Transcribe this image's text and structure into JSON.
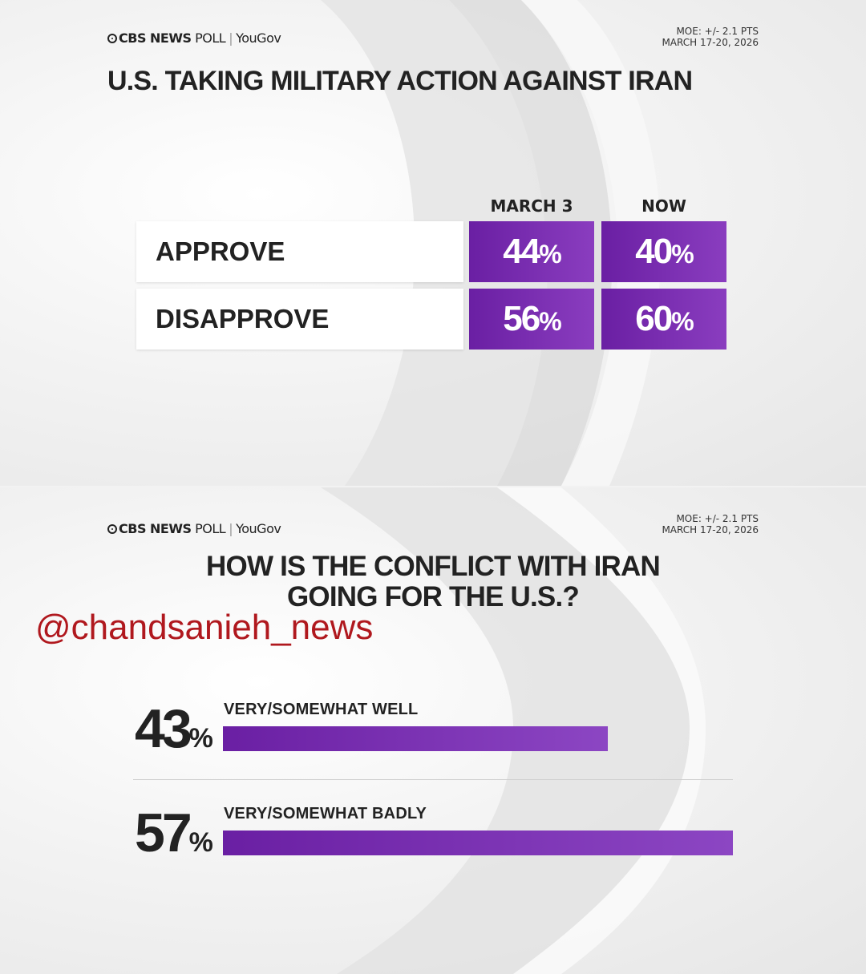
{
  "colors": {
    "accent": "#7a2fb3",
    "watermark": "#b0181e"
  },
  "top": {
    "brand": {
      "cbs": "CBS NEWS",
      "poll": "POLL",
      "partner": "YouGov"
    },
    "moe_line1": "MOE: +/- 2.1 PTS",
    "moe_line2": "MARCH 17-20, 2026"
  },
  "bottom": {
    "brand": {
      "cbs": "CBS NEWS",
      "poll": "POLL",
      "partner": "YouGov"
    },
    "moe_line1": "MOE: +/- 2.1 PTS",
    "moe_line2": "MARCH 17-20, 2026"
  },
  "watermark": "@chandsanieh_news",
  "chart_data": [
    {
      "type": "table",
      "title": "U.S. TAKING MILITARY ACTION AGAINST IRAN",
      "columns": [
        "MARCH 3",
        "NOW"
      ],
      "rows": [
        {
          "label": "APPROVE",
          "values": [
            44,
            40
          ],
          "display": [
            "44",
            "40"
          ]
        },
        {
          "label": "DISAPPROVE",
          "values": [
            56,
            60
          ],
          "display": [
            "56",
            "60"
          ]
        }
      ],
      "unit": "%"
    },
    {
      "type": "bar",
      "title_line1": "HOW IS THE CONFLICT WITH IRAN",
      "title_line2": "GOING FOR THE U.S.?",
      "categories": [
        "VERY/SOMEWHAT WELL",
        "VERY/SOMEWHAT BADLY"
      ],
      "values": [
        43,
        57
      ],
      "display": [
        "43",
        "57"
      ],
      "unit": "%",
      "xlim": [
        0,
        57
      ]
    }
  ]
}
